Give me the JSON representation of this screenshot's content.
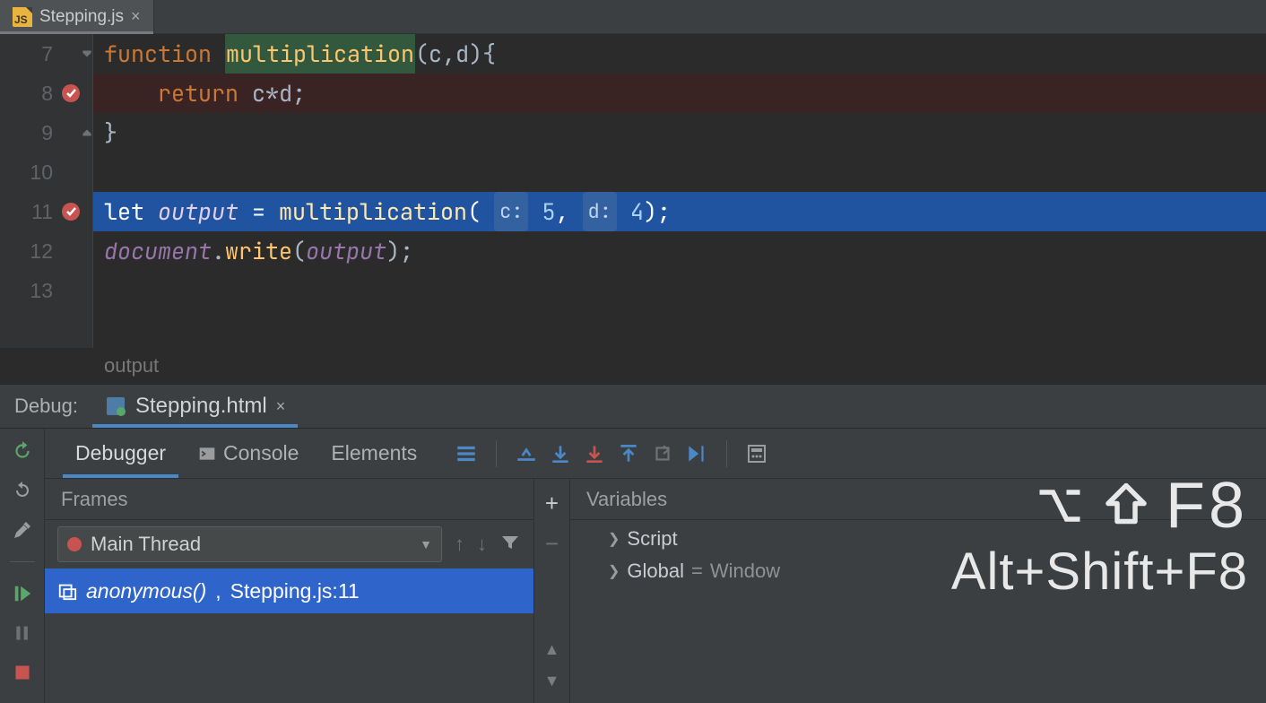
{
  "colors": {
    "bg": "#2b2b2b",
    "panel": "#3c3f41",
    "gutter": "#313335",
    "breakpoint_line": "#3a2323",
    "exec_line": "#2154a0",
    "selection": "#2f65ca",
    "accent_underline": "#4a88c7",
    "keyword": "#cc7832",
    "function_name": "#ffc66d",
    "variable": "#9876aa",
    "number": "#6897bb",
    "text": "#a9b7c6",
    "dim": "#787878"
  },
  "editor": {
    "tab": {
      "file_name": "Stepping.js",
      "icon_text": "JS"
    },
    "first_line_number": 7,
    "lines": [
      {
        "n": 7,
        "fold": "open",
        "tokens": [
          [
            "k-fn",
            "function "
          ],
          [
            "fname-hl",
            "multiplication"
          ],
          [
            "punct",
            "("
          ],
          [
            "param",
            "c"
          ],
          [
            "punct",
            ","
          ],
          [
            "param",
            "d"
          ],
          [
            "punct",
            "){"
          ]
        ]
      },
      {
        "n": 8,
        "breakpoint": true,
        "bg": "breakpoint",
        "tokens": [
          [
            "",
            "    "
          ],
          [
            "k-ret",
            "return "
          ],
          [
            "ident",
            "c"
          ],
          [
            "punct",
            "*"
          ],
          [
            "ident",
            "d"
          ],
          [
            "punct",
            ";"
          ]
        ]
      },
      {
        "n": 9,
        "fold": "close",
        "tokens": [
          [
            "punct",
            "}"
          ]
        ]
      },
      {
        "n": 10,
        "tokens": []
      },
      {
        "n": 11,
        "breakpoint": true,
        "bg": "exec",
        "tokens": [
          [
            "k-let",
            "let "
          ],
          [
            "varname",
            "output"
          ],
          [
            "punct",
            " = "
          ],
          [
            "fname",
            "multiplication"
          ],
          [
            "punct",
            "( "
          ],
          [
            "hint",
            "c:"
          ],
          [
            "punct",
            " "
          ],
          [
            "num-lit",
            "5"
          ],
          [
            "punct",
            ", "
          ],
          [
            "hint",
            "d:"
          ],
          [
            "punct",
            " "
          ],
          [
            "num-lit",
            "4"
          ],
          [
            "punct",
            ");"
          ]
        ]
      },
      {
        "n": 12,
        "tokens": [
          [
            "doc-ident",
            "document"
          ],
          [
            "punct",
            "."
          ],
          [
            "fname",
            "write"
          ],
          [
            "punct",
            "("
          ],
          [
            "varname",
            "output"
          ],
          [
            "punct",
            ");"
          ]
        ]
      },
      {
        "n": 13,
        "tokens": []
      }
    ],
    "live_eval": "output"
  },
  "debug": {
    "label": "Debug:",
    "file_tab": "Stepping.html",
    "tabs": [
      "Debugger",
      "Console",
      "Elements"
    ],
    "active_tab": "Debugger",
    "step_icons": [
      "show-exec",
      "step-over",
      "step-into",
      "step-into-my",
      "step-out",
      "drop-frame",
      "run-to-cursor",
      "eval"
    ],
    "frames": {
      "header": "Frames",
      "thread": "Main Thread",
      "stack": [
        {
          "fn": "anonymous()",
          "loc": "Stepping.js:11"
        }
      ]
    },
    "variables": {
      "header": "Variables",
      "items": [
        {
          "label": "Script"
        },
        {
          "label": "Global",
          "eq": "=",
          "value": "Window"
        }
      ]
    }
  },
  "overlay": {
    "mac": "⌥⇧F8",
    "win": "Alt+Shift+F8"
  }
}
